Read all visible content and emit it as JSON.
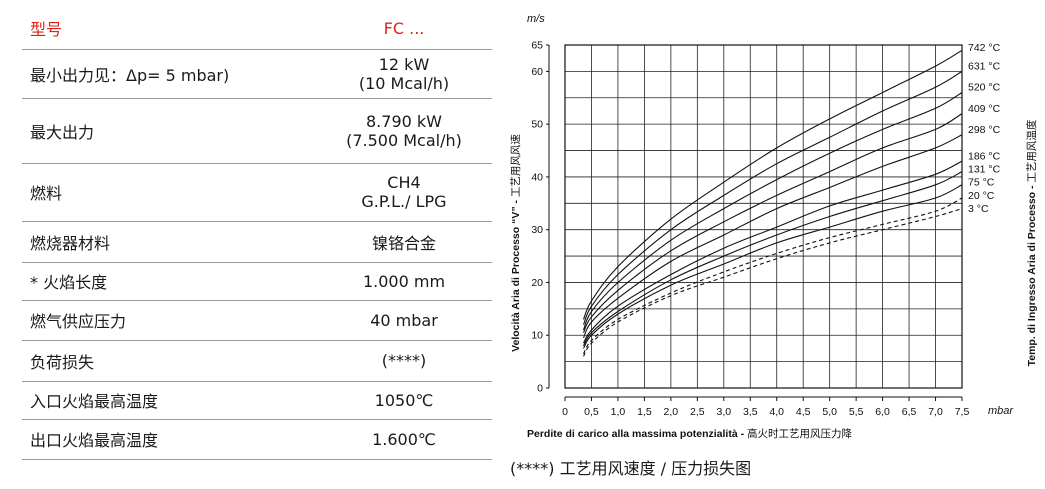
{
  "table": {
    "header": {
      "label": "型号",
      "value": "FC ..."
    },
    "rows": [
      {
        "label": "最小出力见：Δp= 5 mbar)",
        "value": "12 kW",
        "value2": "(10 Mcal/h)"
      },
      {
        "label": "最大出力",
        "value": "8.790 kW",
        "value2": "(7.500 Mcal/h)"
      },
      {
        "label": "燃料",
        "value": "CH4",
        "value2": "G.P.L./ LPG"
      },
      {
        "label": "燃烧器材料",
        "value": "镍铬合金",
        "value2": ""
      },
      {
        "label": "* 火焰长度",
        "value": "1.000 mm",
        "value2": ""
      },
      {
        "label": "燃气供应压力",
        "value": "40 mbar",
        "value2": ""
      },
      {
        "label": "负荷损失",
        "value": "(****)",
        "value2": ""
      },
      {
        "label": "入口火焰最高温度",
        "value": "1050℃",
        "value2": ""
      },
      {
        "label": "出口火焰最高温度",
        "value": "1.600℃",
        "value2": ""
      }
    ]
  },
  "caption": "(****) 工艺用风速度 / 压力损失图",
  "chart_data": {
    "type": "line",
    "y_unit": "m/s",
    "x_unit": "mbar",
    "xlabel_it": "Perdite di carico alla massima potenzialità",
    "xlabel_zh": "高火时工艺用风压力降",
    "ylabel_it": "Velocità Aria di Processo “V”",
    "ylabel_zh": "工艺用风风速",
    "right_label_it": "Temp. di Ingresso Aria di Processo",
    "right_label_zh": "工艺用风温度",
    "xlim": [
      0,
      7.5
    ],
    "ylim": [
      0,
      65
    ],
    "x_ticks": [
      "0",
      "0,5",
      "1,0",
      "1,5",
      "2,0",
      "2,5",
      "3,0",
      "3,5",
      "4,0",
      "4,5",
      "5,0",
      "5,5",
      "6,0",
      "6,5",
      "7,0",
      "7,5"
    ],
    "y_ticks": [
      0,
      10,
      20,
      30,
      40,
      50,
      60,
      65
    ],
    "grid": true,
    "series": [
      {
        "name": "742 °C",
        "dashed": false,
        "x": [
          0.35,
          0.5,
          1.0,
          2.0,
          3.0,
          4.0,
          5.0,
          6.0,
          7.0,
          7.5
        ],
        "y": [
          13.0,
          16.5,
          23.0,
          32.0,
          39.0,
          45.5,
          51.0,
          56.0,
          61.0,
          64.0
        ]
      },
      {
        "name": "631 °C",
        "dashed": false,
        "x": [
          0.35,
          0.5,
          1.0,
          2.0,
          3.0,
          4.0,
          5.0,
          6.0,
          7.0,
          7.5
        ],
        "y": [
          12.0,
          15.5,
          21.5,
          30.0,
          36.5,
          42.5,
          47.5,
          52.5,
          57.0,
          60.0
        ]
      },
      {
        "name": "520 °C",
        "dashed": false,
        "x": [
          0.35,
          0.5,
          1.0,
          2.0,
          3.0,
          4.0,
          5.0,
          6.0,
          7.0,
          7.5
        ],
        "y": [
          11.0,
          14.5,
          20.0,
          28.0,
          34.0,
          39.5,
          44.5,
          49.0,
          53.0,
          56.0
        ]
      },
      {
        "name": "409 °C",
        "dashed": false,
        "x": [
          0.35,
          0.5,
          1.0,
          2.0,
          3.0,
          4.0,
          5.0,
          6.0,
          7.0,
          7.5
        ],
        "y": [
          10.5,
          13.5,
          18.5,
          26.0,
          31.5,
          36.5,
          41.0,
          45.5,
          49.0,
          52.0
        ]
      },
      {
        "name": "298 °C",
        "dashed": false,
        "x": [
          0.35,
          0.5,
          1.0,
          2.0,
          3.0,
          4.0,
          5.0,
          6.0,
          7.0,
          7.5
        ],
        "y": [
          9.5,
          12.5,
          17.0,
          24.0,
          29.0,
          34.0,
          38.0,
          42.0,
          45.5,
          48.0
        ]
      },
      {
        "name": "186 °C",
        "dashed": false,
        "x": [
          0.35,
          0.5,
          1.0,
          2.0,
          3.0,
          4.0,
          5.0,
          6.0,
          7.0,
          7.5
        ],
        "y": [
          8.5,
          11.0,
          15.5,
          21.5,
          26.5,
          30.5,
          34.5,
          37.5,
          40.5,
          43.0
        ]
      },
      {
        "name": "131 °C",
        "dashed": false,
        "x": [
          0.35,
          0.5,
          1.0,
          2.0,
          3.0,
          4.0,
          5.0,
          6.0,
          7.0,
          7.5
        ],
        "y": [
          8.0,
          10.5,
          14.5,
          20.5,
          25.0,
          29.0,
          32.5,
          35.5,
          38.5,
          41.0
        ]
      },
      {
        "name": "75 °C",
        "dashed": false,
        "x": [
          0.35,
          0.5,
          1.0,
          2.0,
          3.0,
          4.0,
          5.0,
          6.0,
          7.0,
          7.5
        ],
        "y": [
          7.5,
          10.0,
          14.0,
          19.5,
          23.5,
          27.5,
          30.5,
          33.5,
          36.0,
          38.5
        ]
      },
      {
        "name": "20 °C",
        "dashed": true,
        "x": [
          0.35,
          0.5,
          1.0,
          2.0,
          3.0,
          4.0,
          5.0,
          6.0,
          7.0,
          7.5
        ],
        "y": [
          6.5,
          9.0,
          13.0,
          18.0,
          22.0,
          25.5,
          28.5,
          31.0,
          33.5,
          36.0
        ]
      },
      {
        "name": "3 °C",
        "dashed": true,
        "x": [
          0.35,
          0.5,
          1.0,
          2.0,
          3.0,
          4.0,
          5.0,
          6.0,
          7.0,
          7.5
        ],
        "y": [
          6.0,
          8.5,
          12.5,
          17.5,
          21.0,
          24.5,
          27.5,
          30.0,
          32.5,
          34.0
        ]
      }
    ],
    "label_y": [
      64.5,
      61.0,
      57.0,
      53.0,
      49.0,
      44.0,
      41.5,
      39.0,
      36.5,
      34.0
    ]
  }
}
